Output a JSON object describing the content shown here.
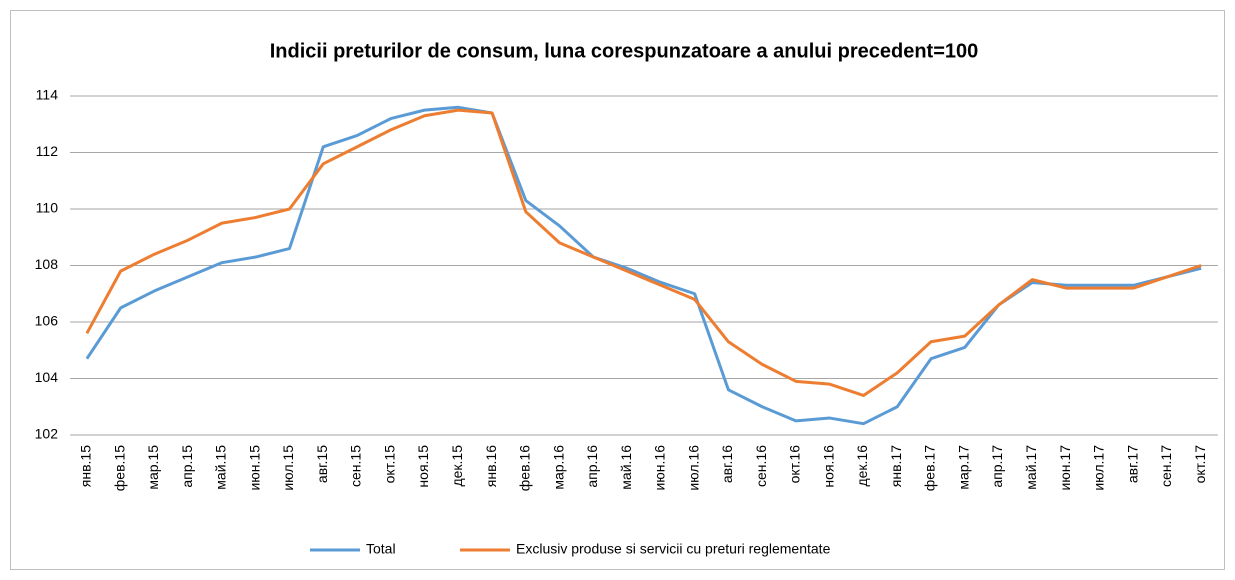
{
  "chart_data": {
    "type": "line",
    "title": "Indicii preturilor de consum, luna corespunzatoare a anului precedent=100",
    "categories": [
      "янв.15",
      "фев.15",
      "мар.15",
      "апр.15",
      "май.15",
      "июн.15",
      "июл.15",
      "авг.15",
      "сен.15",
      "окт.15",
      "ноя.15",
      "дек.15",
      "янв.16",
      "фев.16",
      "мар.16",
      "апр.16",
      "май.16",
      "июн.16",
      "июл.16",
      "авг.16",
      "сен.16",
      "окт.16",
      "ноя.16",
      "дек.16",
      "янв.17",
      "фев.17",
      "мар.17",
      "апр.17",
      "май.17",
      "июн.17",
      "июл.17",
      "авг.17",
      "сен.17",
      "окт.17"
    ],
    "series": [
      {
        "name": "Total",
        "color": "#5b9bd5",
        "values": [
          104.7,
          106.5,
          107.1,
          107.6,
          108.1,
          108.3,
          108.6,
          112.2,
          112.6,
          113.2,
          113.5,
          113.6,
          113.4,
          110.3,
          109.4,
          108.3,
          107.9,
          107.4,
          107.0,
          103.6,
          103.0,
          102.5,
          102.6,
          102.4,
          103.0,
          104.7,
          105.1,
          106.6,
          107.4,
          107.3,
          107.3,
          107.3,
          107.6,
          107.9
        ]
      },
      {
        "name": "Exclusiv produse si servicii cu preturi reglementate",
        "color": "#ed7d31",
        "values": [
          105.6,
          107.8,
          108.4,
          108.9,
          109.5,
          109.7,
          110.0,
          111.6,
          112.2,
          112.8,
          113.3,
          113.5,
          113.4,
          109.9,
          108.8,
          108.3,
          107.8,
          107.3,
          106.8,
          105.3,
          104.5,
          103.9,
          103.8,
          103.4,
          104.2,
          105.3,
          105.5,
          106.6,
          107.5,
          107.2,
          107.2,
          107.2,
          107.6,
          108.0
        ]
      }
    ],
    "ylim": [
      102,
      114
    ],
    "yticks": [
      102,
      104,
      106,
      108,
      110,
      112,
      114
    ],
    "grid": true,
    "legend": "bottom"
  }
}
